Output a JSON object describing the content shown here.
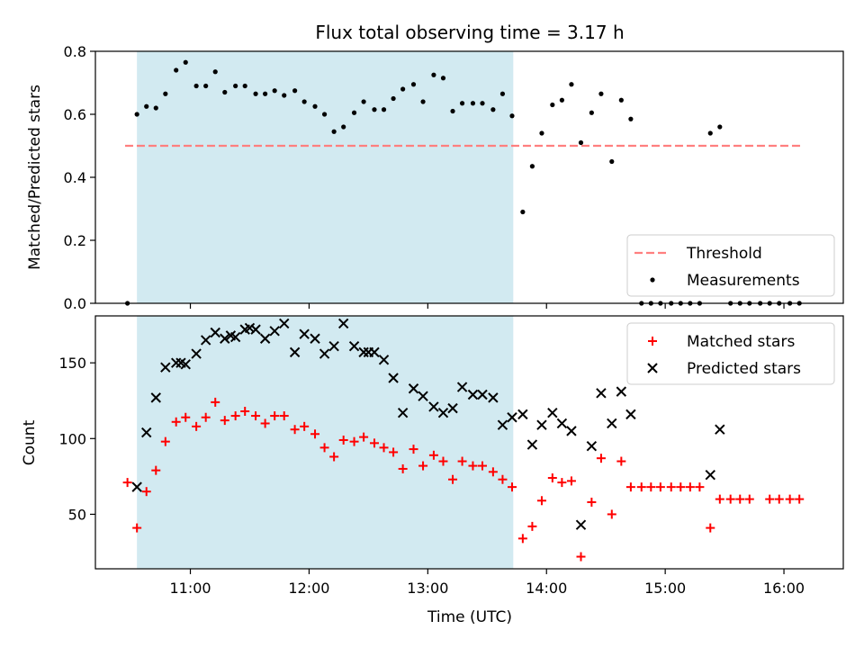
{
  "chart_data": [
    {
      "type": "scatter",
      "title": "Flux total observing time = 3.17 h",
      "xlabel": "",
      "ylabel": "Matched/Predicted stars",
      "ylim": [
        0,
        0.8
      ],
      "yticks": [
        "0.0",
        "0.2",
        "0.4",
        "0.6",
        "0.8"
      ],
      "xlim_hours": [
        10.2,
        16.5
      ],
      "highlight_span_hours": [
        10.55,
        13.72
      ],
      "highlight_color": "#add8e6",
      "legend_position": "lower-right",
      "series": [
        {
          "name": "Threshold",
          "style": "dashed-line",
          "color": "#ff7f7f",
          "x": [
            10.45,
            16.15
          ],
          "y": [
            0.5,
            0.5
          ]
        },
        {
          "name": "Measurements",
          "style": "dot",
          "color": "#000000",
          "x": [
            10.47,
            10.55,
            10.63,
            10.71,
            10.79,
            10.88,
            10.96,
            11.05,
            11.13,
            11.21,
            11.29,
            11.38,
            11.46,
            11.55,
            11.63,
            11.71,
            11.79,
            11.88,
            11.96,
            12.05,
            12.13,
            12.21,
            12.29,
            12.38,
            12.46,
            12.55,
            12.63,
            12.71,
            12.79,
            12.88,
            12.96,
            13.05,
            13.13,
            13.21,
            13.29,
            13.38,
            13.46,
            13.55,
            13.63,
            13.71,
            13.8,
            13.88,
            13.96,
            14.05,
            14.13,
            14.21,
            14.29,
            14.38,
            14.46,
            14.55,
            14.63,
            14.71,
            14.8,
            14.88,
            14.96,
            15.05,
            15.13,
            15.21,
            15.29,
            15.38,
            15.46,
            15.55,
            15.63,
            15.71,
            15.8,
            15.88,
            15.96,
            16.05,
            16.13
          ],
          "y": [
            0.0,
            0.6,
            0.625,
            0.62,
            0.665,
            0.74,
            0.765,
            0.69,
            0.69,
            0.735,
            0.67,
            0.69,
            0.69,
            0.665,
            0.665,
            0.675,
            0.66,
            0.675,
            0.64,
            0.625,
            0.6,
            0.545,
            0.56,
            0.605,
            0.64,
            0.615,
            0.615,
            0.65,
            0.68,
            0.695,
            0.64,
            0.725,
            0.715,
            0.61,
            0.635,
            0.635,
            0.635,
            0.615,
            0.665,
            0.595,
            0.29,
            0.435,
            0.54,
            0.63,
            0.645,
            0.695,
            0.51,
            0.605,
            0.665,
            0.45,
            0.645,
            0.585,
            0.0,
            0.0,
            0.0,
            0.0,
            0.0,
            0.0,
            0.0,
            0.54,
            0.56,
            0.0,
            0.0,
            0.0,
            0.0,
            0.0,
            0.0,
            0.0,
            0.0
          ]
        }
      ]
    },
    {
      "type": "scatter",
      "title": "",
      "xlabel": "Time (UTC)",
      "ylabel": "Count",
      "ylim": [
        14,
        181
      ],
      "yticks": [
        "50",
        "100",
        "150"
      ],
      "xticks": [
        "11:00",
        "12:00",
        "13:00",
        "14:00",
        "15:00",
        "16:00"
      ],
      "xlim_hours": [
        10.2,
        16.5
      ],
      "highlight_span_hours": [
        10.55,
        13.72
      ],
      "highlight_color": "#add8e6",
      "legend_position": "top-right",
      "series": [
        {
          "name": "Matched stars",
          "style": "plus",
          "color": "#ff0000",
          "x": [
            10.47,
            10.55,
            10.63,
            10.71,
            10.79,
            10.88,
            10.96,
            11.05,
            11.13,
            11.21,
            11.29,
            11.38,
            11.46,
            11.55,
            11.63,
            11.71,
            11.79,
            11.88,
            11.96,
            12.05,
            12.13,
            12.21,
            12.29,
            12.38,
            12.46,
            12.55,
            12.63,
            12.71,
            12.79,
            12.88,
            12.96,
            13.05,
            13.13,
            13.21,
            13.29,
            13.38,
            13.46,
            13.55,
            13.63,
            13.71,
            13.8,
            13.88,
            13.96,
            14.05,
            14.13,
            14.21,
            14.29,
            14.38,
            14.46,
            14.55,
            14.63,
            14.71,
            14.8,
            14.88,
            14.96,
            15.05,
            15.13,
            15.21,
            15.29,
            15.38,
            15.46,
            15.55,
            15.63,
            15.71,
            15.88,
            15.96,
            16.05,
            16.13
          ],
          "y": [
            71,
            41,
            65,
            79,
            98,
            111,
            114,
            108,
            114,
            124,
            112,
            115,
            118,
            115,
            110,
            115,
            115,
            106,
            108,
            103,
            94,
            88,
            99,
            98,
            101,
            97,
            94,
            91,
            80,
            93,
            82,
            89,
            85,
            73,
            85,
            82,
            82,
            78,
            73,
            68,
            34,
            42,
            59,
            74,
            71,
            72,
            22,
            58,
            87,
            50,
            85,
            68,
            68,
            68,
            68,
            68,
            68,
            68,
            68,
            41,
            60,
            60,
            60,
            60,
            60,
            60,
            60,
            60
          ]
        },
        {
          "name": "Predicted stars",
          "style": "x",
          "color": "#000000",
          "x": [
            10.55,
            10.63,
            10.71,
            10.79,
            10.88,
            10.92,
            10.96,
            11.05,
            11.13,
            11.21,
            11.29,
            11.34,
            11.38,
            11.46,
            11.5,
            11.55,
            11.63,
            11.71,
            11.79,
            11.88,
            11.96,
            12.05,
            12.13,
            12.21,
            12.29,
            12.38,
            12.46,
            12.5,
            12.55,
            12.63,
            12.71,
            12.79,
            12.88,
            12.96,
            13.05,
            13.13,
            13.21,
            13.29,
            13.38,
            13.46,
            13.55,
            13.63,
            13.71,
            13.8,
            13.88,
            13.96,
            14.05,
            14.13,
            14.21,
            14.29,
            14.38,
            14.46,
            14.55,
            14.63,
            14.71,
            15.38,
            15.46
          ],
          "y": [
            68,
            104,
            127,
            147,
            150,
            150,
            149,
            156,
            165,
            170,
            166,
            168,
            167,
            172,
            173,
            172,
            166,
            171,
            176,
            157,
            169,
            166,
            156,
            161,
            176,
            161,
            157,
            157,
            157,
            152,
            140,
            117,
            133,
            128,
            121,
            117,
            120,
            134,
            129,
            129,
            127,
            109,
            114,
            116,
            96,
            109,
            117,
            110,
            105,
            43,
            95,
            130,
            110,
            131,
            116,
            76,
            106
          ]
        }
      ]
    }
  ]
}
